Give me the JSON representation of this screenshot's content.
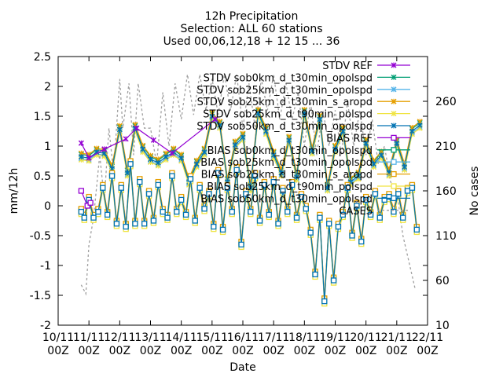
{
  "chart_data": {
    "type": "line",
    "title_lines": [
      "12h Precipitation",
      "Selection: ALL      60 stations",
      "Used 00,06,12,18 + 12 15 ... 36"
    ],
    "xlabel": "Date",
    "ylabel": "mm/12h",
    "y2label": "No cases",
    "ylim": [
      -2,
      2.5
    ],
    "y2lim": [
      10,
      310
    ],
    "yticks": [
      -2,
      -1.5,
      -1,
      -0.5,
      0,
      0.5,
      1,
      1.5,
      2,
      2.5
    ],
    "y2ticks": [
      60,
      110,
      160,
      210,
      260
    ],
    "xticks": [
      [
        "10/11",
        "00Z"
      ],
      [
        "11/11",
        "00Z"
      ],
      [
        "12/11",
        "00Z"
      ],
      [
        "13/11",
        "00Z"
      ],
      [
        "14/11",
        "00Z"
      ],
      [
        "15/11",
        "00Z"
      ],
      [
        "16/11",
        "00Z"
      ],
      [
        "17/11",
        "00Z"
      ],
      [
        "18/11",
        "00Z"
      ],
      [
        "19/11",
        "00Z"
      ],
      [
        "20/11",
        "00Z"
      ],
      [
        "21/11",
        "00Z"
      ],
      [
        "22/11",
        "00Z"
      ]
    ],
    "x_range_days": [
      0,
      12
    ],
    "legend_position": "top-right",
    "series": [
      {
        "name": "STDV REF",
        "color": "#9400d3",
        "marker": "x",
        "axis": "y1",
        "kind": "stdv"
      },
      {
        "name": "STDV sob0km_d_t30min_opolspd",
        "color": "#009e73",
        "marker": "x",
        "axis": "y1",
        "kind": "stdv"
      },
      {
        "name": "STDV sob25km_d_t30min_opolspd",
        "color": "#56b4e9",
        "marker": "x",
        "axis": "y1",
        "kind": "stdv"
      },
      {
        "name": "STDV sob25km_d_t30min_s_aropd",
        "color": "#e69f00",
        "marker": "x",
        "axis": "y1",
        "kind": "stdv"
      },
      {
        "name": "STDV sob25km_d_t90min_polspd",
        "color": "#f0e442",
        "marker": "x",
        "axis": "y1",
        "kind": "stdv"
      },
      {
        "name": "STDV sob50km_d_t30min_opolspd",
        "color": "#0072b2",
        "marker": "x",
        "axis": "y1",
        "kind": "stdv"
      },
      {
        "name": "BIAS REF",
        "color": "#9400d3",
        "marker": "square",
        "axis": "y1",
        "kind": "bias"
      },
      {
        "name": "BIAS sob0km_d_t30min_opolspd",
        "color": "#009e73",
        "marker": "square",
        "axis": "y1",
        "kind": "bias"
      },
      {
        "name": "BIAS sob25km_d_t30min_opolspd",
        "color": "#56b4e9",
        "marker": "square",
        "axis": "y1",
        "kind": "bias"
      },
      {
        "name": "BIAS sob25km_d_t30min_s_aropd",
        "color": "#e69f00",
        "marker": "square",
        "axis": "y1",
        "kind": "bias"
      },
      {
        "name": "BIAS sob25km_d_t90min_polspd",
        "color": "#f0e442",
        "marker": "square",
        "axis": "y1",
        "kind": "bias"
      },
      {
        "name": "BIAS sob50km_d_t30min_opolspd",
        "color": "#0072b2",
        "marker": "square",
        "axis": "y1",
        "kind": "bias"
      },
      {
        "name": "CASES",
        "color": "#a0a0a0",
        "marker": "none",
        "axis": "y2",
        "kind": "cases",
        "dashed": true
      }
    ],
    "stdv_main": {
      "x_days": [
        0.75,
        1.0,
        1.25,
        1.5,
        1.75,
        2.0,
        2.25,
        2.5,
        2.75,
        3.0,
        3.25,
        3.5,
        3.75,
        4.0,
        4.25,
        4.5,
        4.75,
        5.0,
        5.25,
        5.5,
        5.75,
        6.0,
        6.25,
        6.5,
        6.75,
        7.0,
        7.25,
        7.5,
        7.75,
        8.0,
        8.25,
        8.5,
        8.75,
        9.0,
        9.25,
        9.5,
        9.75,
        10.0,
        10.25,
        10.5,
        10.75,
        11.0,
        11.25,
        11.5,
        11.75
      ],
      "values": [
        0.82,
        0.8,
        0.9,
        0.88,
        0.62,
        1.28,
        0.55,
        1.3,
        0.95,
        0.78,
        0.72,
        0.82,
        0.9,
        0.8,
        0.4,
        0.7,
        0.9,
        1.5,
        1.35,
        0.4,
        1.02,
        1.15,
        0.3,
        1.55,
        1.25,
        0.85,
        0.55,
        1.1,
        0.48,
        1.55,
        0.92,
        1.45,
        0.3,
        0.95,
        1.25,
        0.4,
        0.5,
        1.05,
        0.7,
        0.85,
        0.55,
        1.05,
        0.65,
        1.25,
        1.35
      ]
    },
    "bias_main": {
      "x_days": [
        0.75,
        0.85,
        1.0,
        1.15,
        1.3,
        1.45,
        1.6,
        1.75,
        1.9,
        2.05,
        2.2,
        2.35,
        2.5,
        2.65,
        2.8,
        2.95,
        3.1,
        3.25,
        3.4,
        3.55,
        3.7,
        3.85,
        4.0,
        4.15,
        4.3,
        4.45,
        4.6,
        4.75,
        4.9,
        5.05,
        5.2,
        5.35,
        5.5,
        5.65,
        5.8,
        5.95,
        6.1,
        6.25,
        6.4,
        6.55,
        6.7,
        6.85,
        7.0,
        7.15,
        7.3,
        7.45,
        7.6,
        7.75,
        7.9,
        8.05,
        8.2,
        8.35,
        8.5,
        8.65,
        8.8,
        8.95,
        9.1,
        9.25,
        9.4,
        9.55,
        9.7,
        9.85,
        10.0,
        10.15,
        10.3,
        10.45,
        10.6,
        10.75,
        10.9,
        11.05,
        11.2,
        11.35,
        11.5,
        11.65
      ],
      "values": [
        -0.1,
        -0.2,
        0.1,
        -0.2,
        -0.1,
        0.3,
        -0.15,
        0.5,
        -0.3,
        0.3,
        -0.35,
        0.7,
        -0.3,
        0.4,
        -0.3,
        0.2,
        -0.25,
        0.35,
        -0.1,
        -0.2,
        0.5,
        -0.1,
        0.1,
        -0.15,
        0.45,
        -0.25,
        0.3,
        -0.05,
        0.2,
        -0.35,
        0.55,
        -0.4,
        0.3,
        -0.1,
        0.6,
        -0.65,
        0.2,
        -0.1,
        0.5,
        -0.25,
        0.35,
        -0.15,
        0.4,
        -0.3,
        0.25,
        -0.1,
        0.35,
        -0.2,
        0.15,
        -0.05,
        -0.45,
        -1.15,
        -0.2,
        -1.6,
        -0.3,
        -1.25,
        -0.35,
        -0.15,
        0.3,
        -0.5,
        0.0,
        -0.6,
        0.1,
        -0.15,
        0.2,
        -0.2,
        0.1,
        0.15,
        -0.1,
        0.2,
        -0.2,
        0.25,
        0.3,
        -0.4
      ]
    },
    "stdv_ref_points": {
      "x_days": [
        0.75,
        1.0,
        1.5,
        2.2,
        2.55,
        3.1,
        3.7,
        5.1
      ],
      "values": [
        1.05,
        0.8,
        0.95,
        1.12,
        1.3,
        1.1,
        0.88,
        1.45
      ]
    },
    "bias_ref_points": {
      "x_days": [
        0.75,
        0.95,
        1.05
      ],
      "values": [
        0.25,
        0.0,
        0.05
      ]
    },
    "cases": {
      "x_days": [
        0.75,
        0.9,
        1.0,
        1.15,
        1.35,
        1.5,
        1.65,
        1.8,
        2.0,
        2.1,
        2.3,
        2.45,
        2.6,
        2.8,
        3.0,
        3.2,
        3.4,
        3.6,
        3.8,
        4.0,
        4.2,
        4.4,
        4.6,
        4.8,
        5.0,
        5.2,
        5.4,
        5.6,
        5.8,
        6.0,
        6.2,
        6.4,
        6.6,
        6.8,
        7.0,
        7.2,
        7.4,
        7.6,
        7.8,
        8.0,
        8.2,
        8.4,
        8.6,
        8.8,
        9.0,
        9.2,
        9.4,
        9.6,
        9.8,
        10.0,
        10.2,
        10.4,
        10.6,
        10.8,
        11.0,
        11.2,
        11.4,
        11.6
      ],
      "values": [
        55,
        45,
        100,
        130,
        200,
        150,
        230,
        180,
        285,
        230,
        280,
        200,
        280,
        230,
        230,
        190,
        270,
        210,
        280,
        240,
        290,
        245,
        290,
        250,
        285,
        245,
        290,
        250,
        290,
        230,
        280,
        230,
        285,
        250,
        290,
        240,
        280,
        240,
        270,
        210,
        260,
        200,
        250,
        210,
        250,
        200,
        260,
        210,
        250,
        200,
        240,
        190,
        210,
        170,
        160,
        110,
        80,
        50
      ]
    }
  }
}
